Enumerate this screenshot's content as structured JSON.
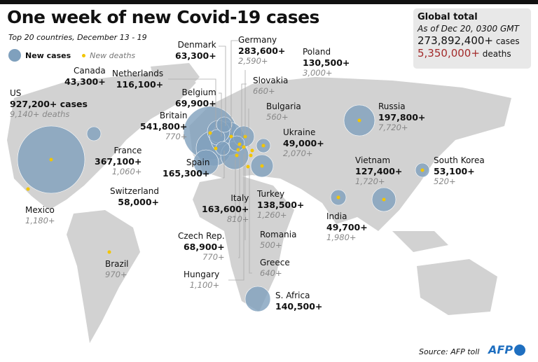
{
  "title": "One week of new Covid-19 cases",
  "subtitle": "Top 20 countries, December 13 - 19",
  "legend": {
    "cases": "New cases",
    "deaths": "New deaths"
  },
  "colors": {
    "bubble": "#7fa0bd",
    "death_dot": "#f2c500",
    "land": "#d2d2d2",
    "deaths_total": "#a32a2a"
  },
  "global": {
    "heading": "Global total",
    "as_of": "As of Dec 20, 0300 GMT",
    "cases_value": "273,892,400+",
    "cases_unit": "cases",
    "deaths_value": "5,350,000+",
    "deaths_unit": "deaths"
  },
  "countries": [
    {
      "name": "US",
      "cases": "927,200+ cases",
      "deaths": "9,140+ deaths"
    },
    {
      "name": "Canada",
      "cases": "43,300+"
    },
    {
      "name": "Mexico",
      "deaths": "1,180+"
    },
    {
      "name": "Brazil",
      "deaths": "970+"
    },
    {
      "name": "Netherlands",
      "cases": "116,100+"
    },
    {
      "name": "Denmark",
      "cases": "63,300+"
    },
    {
      "name": "Germany",
      "cases": "283,600+",
      "deaths": "2,590+"
    },
    {
      "name": "Poland",
      "cases": "130,500+",
      "deaths": "3,000+"
    },
    {
      "name": "Slovakia",
      "deaths": "660+"
    },
    {
      "name": "Belgium",
      "cases": "69,900+"
    },
    {
      "name": "Bulgaria",
      "deaths": "560+"
    },
    {
      "name": "Britain",
      "cases": "541,800+",
      "deaths": "770+"
    },
    {
      "name": "Ukraine",
      "cases": "49,000+",
      "deaths": "2,070+"
    },
    {
      "name": "France",
      "cases": "367,100+",
      "deaths": "1,060+"
    },
    {
      "name": "Spain",
      "cases": "165,300+"
    },
    {
      "name": "Switzerland",
      "cases": "58,000+"
    },
    {
      "name": "Italy",
      "cases": "163,600+",
      "deaths": "810+"
    },
    {
      "name": "Turkey",
      "cases": "138,500+",
      "deaths": "1,260+"
    },
    {
      "name": "Romania",
      "deaths": "500+"
    },
    {
      "name": "Czech Rep.",
      "cases": "68,900+",
      "deaths": "770+"
    },
    {
      "name": "Greece",
      "deaths": "640+"
    },
    {
      "name": "Hungary",
      "deaths": "1,100+"
    },
    {
      "name": "S. Africa",
      "cases": "140,500+"
    },
    {
      "name": "Russia",
      "cases": "197,800+",
      "deaths": "7,720+"
    },
    {
      "name": "Vietnam",
      "cases": "127,400+",
      "deaths": "1,720+"
    },
    {
      "name": "India",
      "cases": "49,700+",
      "deaths": "1,980+"
    },
    {
      "name": "South Korea",
      "cases": "53,100+",
      "deaths": "520+"
    }
  ],
  "source": "Source: AFP toll",
  "logo": "AFP"
}
